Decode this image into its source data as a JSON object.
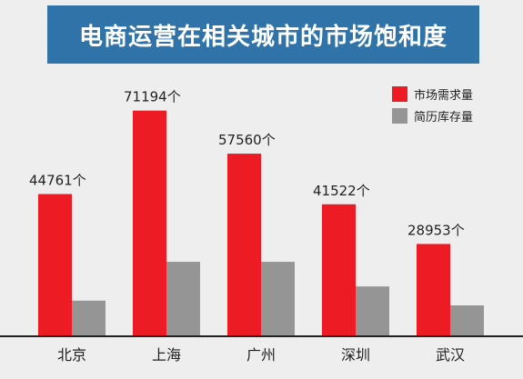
{
  "title": "电商运营在相关城市的市场饱和度",
  "chart_data": {
    "type": "bar",
    "title": "电商运营在相关城市的市场饱和度",
    "categories": [
      "北京",
      "上海",
      "广州",
      "深圳",
      "武汉"
    ],
    "series": [
      {
        "name": "市场需求量",
        "color": "#ed1c24",
        "values": [
          44761,
          71194,
          57560,
          41522,
          28953
        ],
        "labels": [
          "44761个",
          "71194个",
          "57560个",
          "41522个",
          "28953个"
        ]
      },
      {
        "name": "简历库存量",
        "color": "#959595",
        "values": [
          11000,
          23300,
          23300,
          15500,
          9500
        ]
      }
    ],
    "ylim": [
      0,
      76000
    ],
    "grid": false,
    "legend_position": "top-right"
  }
}
